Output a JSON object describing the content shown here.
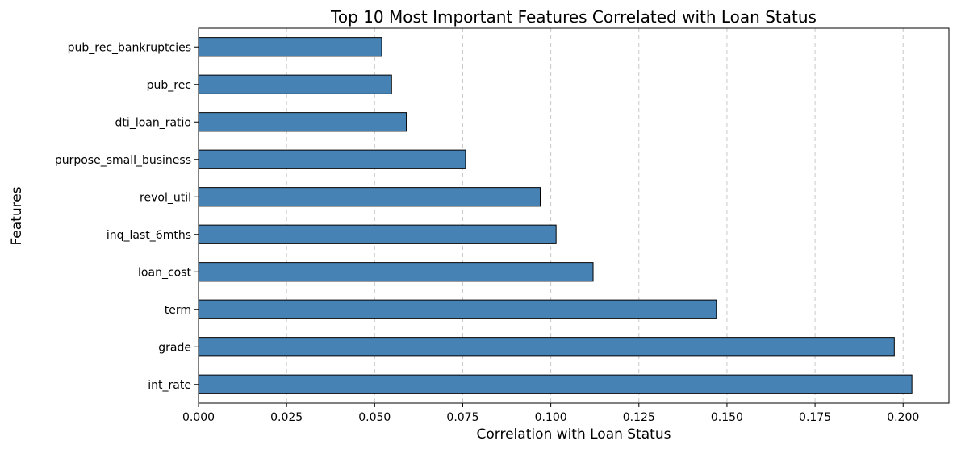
{
  "chart_data": {
    "type": "bar",
    "orientation": "horizontal",
    "title": "Top 10 Most Important Features Correlated with Loan Status",
    "xlabel": "Correlation with Loan Status",
    "ylabel": "Features",
    "categories": [
      "int_rate",
      "grade",
      "term",
      "loan_cost",
      "inq_last_6mths",
      "revol_util",
      "purpose_small_business",
      "dti_loan_ratio",
      "pub_rec",
      "pub_rec_bankruptcies"
    ],
    "values": [
      0.2025,
      0.1975,
      0.147,
      0.112,
      0.1015,
      0.097,
      0.0758,
      0.059,
      0.0548,
      0.052
    ],
    "xlim": [
      0,
      0.213
    ],
    "xticks": [
      0.0,
      0.025,
      0.05,
      0.075,
      0.1,
      0.125,
      0.15,
      0.175,
      0.2
    ],
    "xtick_labels": [
      "0.000",
      "0.025",
      "0.050",
      "0.075",
      "0.100",
      "0.125",
      "0.150",
      "0.175",
      "0.200"
    ],
    "grid": "x-axis dashed",
    "bar_color": "#4682b4",
    "bar_edge_color": "#000000",
    "grid_color": "#c8c8c8"
  }
}
